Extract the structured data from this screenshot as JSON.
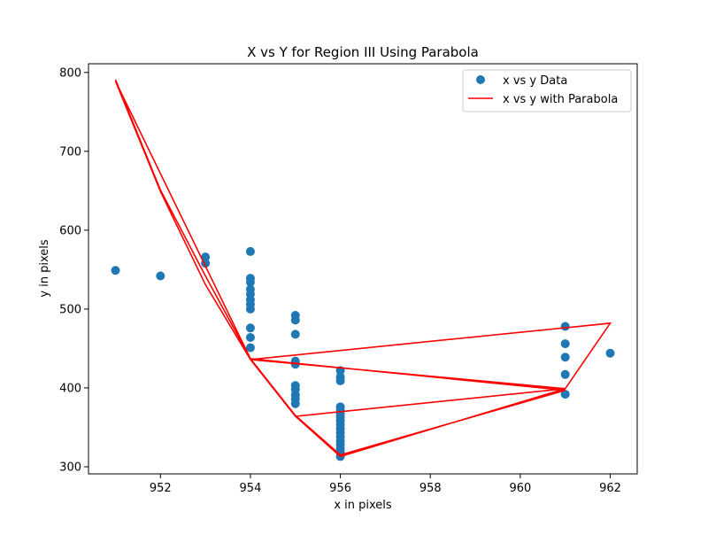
{
  "chart_data": {
    "type": "scatter",
    "title": "X vs Y for Region III Using Parabola",
    "xlabel": "x in pixels",
    "ylabel": "y in pixels",
    "xlim": [
      950.4,
      962.6
    ],
    "ylim": [
      291,
      811
    ],
    "xticks": [
      952,
      954,
      956,
      958,
      960,
      962
    ],
    "yticks": [
      300,
      400,
      500,
      600,
      700,
      800
    ],
    "grid": false,
    "legend_position": "top-right",
    "colors": {
      "scatter": "#1f77b4",
      "line": "#ff0000"
    },
    "series": [
      {
        "name": "x vs y Data",
        "kind": "scatter",
        "points": [
          [
            951,
            549
          ],
          [
            952,
            542
          ],
          [
            953,
            566
          ],
          [
            953,
            558
          ],
          [
            954,
            573
          ],
          [
            954,
            539
          ],
          [
            954,
            534
          ],
          [
            954,
            525
          ],
          [
            954,
            519
          ],
          [
            954,
            512
          ],
          [
            954,
            506
          ],
          [
            954,
            500
          ],
          [
            954,
            476
          ],
          [
            954,
            464
          ],
          [
            954,
            451
          ],
          [
            955,
            492
          ],
          [
            955,
            486
          ],
          [
            955,
            468
          ],
          [
            955,
            434
          ],
          [
            955,
            430
          ],
          [
            955,
            403
          ],
          [
            955,
            398
          ],
          [
            955,
            391
          ],
          [
            955,
            386
          ],
          [
            955,
            380
          ],
          [
            956,
            422
          ],
          [
            956,
            414
          ],
          [
            956,
            409
          ],
          [
            956,
            376
          ],
          [
            956,
            372
          ],
          [
            956,
            367
          ],
          [
            956,
            363
          ],
          [
            956,
            358
          ],
          [
            956,
            353
          ],
          [
            956,
            348
          ],
          [
            956,
            343
          ],
          [
            956,
            338
          ],
          [
            956,
            333
          ],
          [
            956,
            328
          ],
          [
            956,
            323
          ],
          [
            956,
            318
          ],
          [
            956,
            313
          ],
          [
            961,
            478
          ],
          [
            961,
            456
          ],
          [
            961,
            439
          ],
          [
            961,
            417
          ],
          [
            961,
            392
          ],
          [
            962,
            444
          ]
        ]
      },
      {
        "name": "x vs y with Parabola",
        "kind": "line",
        "points": [
          [
            951,
            791
          ],
          [
            952,
            651
          ],
          [
            953,
            542
          ],
          [
            954,
            437
          ],
          [
            955,
            365
          ],
          [
            956,
            315
          ],
          [
            961,
            397
          ],
          [
            954,
            437
          ],
          [
            955,
            365
          ],
          [
            956,
            315
          ],
          [
            961,
            397
          ],
          [
            954,
            437
          ],
          [
            951,
            789
          ],
          [
            952,
            649
          ],
          [
            953,
            531
          ],
          [
            954,
            436
          ],
          [
            955,
            364
          ],
          [
            956,
            313
          ],
          [
            961,
            399
          ],
          [
            954,
            436
          ],
          [
            962,
            482
          ],
          [
            961,
            399
          ],
          [
            955,
            364
          ],
          [
            954,
            436
          ]
        ]
      }
    ]
  }
}
